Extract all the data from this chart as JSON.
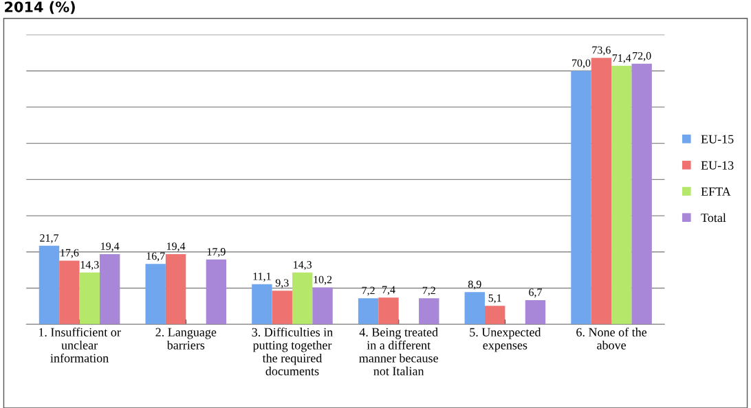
{
  "chart_data": {
    "type": "bar",
    "title": "2014 (%)",
    "categories": [
      "1. Insufficient or\nunclear\ninformation",
      "2. Language\nbarriers",
      "3. Difficulties in\nputting together\nthe required\ndocuments",
      "4. Being treated\nin a different\nmanner because\nnot Italian",
      "5. Unexpected\nexpenses",
      "6. None of the\nabove"
    ],
    "series": [
      {
        "name": "EU-15",
        "color": "#6fa6ee",
        "values": [
          21.7,
          16.7,
          11.1,
          7.2,
          8.9,
          70.0
        ],
        "value_labels": [
          "21,7",
          "16,7",
          "11,1",
          "7,2",
          "8,9",
          "70,0"
        ]
      },
      {
        "name": "EU-13",
        "color": "#ee7370",
        "values": [
          17.6,
          19.4,
          9.3,
          7.4,
          5.1,
          73.6
        ],
        "value_labels": [
          "17,6",
          "19,4",
          "9,3",
          "7,4",
          "5,1",
          "73,6"
        ]
      },
      {
        "name": "EFTA",
        "color": "#b5e86a",
        "values": [
          14.3,
          null,
          14.3,
          null,
          null,
          71.4
        ],
        "value_labels": [
          "14,3",
          null,
          "14,3",
          null,
          null,
          "71,4"
        ]
      },
      {
        "name": "Total",
        "color": "#a987d8",
        "values": [
          19.4,
          17.9,
          10.2,
          7.2,
          6.7,
          72.0
        ],
        "value_labels": [
          "19,4",
          "17,9",
          "10,2",
          "7,2",
          "6,7",
          "72,0"
        ]
      }
    ],
    "ylim": [
      0,
      80
    ],
    "yticks": [
      {
        "value": 0,
        "label": null
      },
      {
        "value": 10,
        "label": null
      },
      {
        "value": 20,
        "label": null
      },
      {
        "value": 30,
        "label": null
      },
      {
        "value": 40,
        "label": null
      },
      {
        "value": 50,
        "label": null
      },
      {
        "value": 60,
        "label": null
      },
      {
        "value": 70,
        "label": null
      },
      {
        "value": 80,
        "label": null
      }
    ],
    "tick_labels": "x",
    "grid": "y",
    "legend": "right"
  }
}
